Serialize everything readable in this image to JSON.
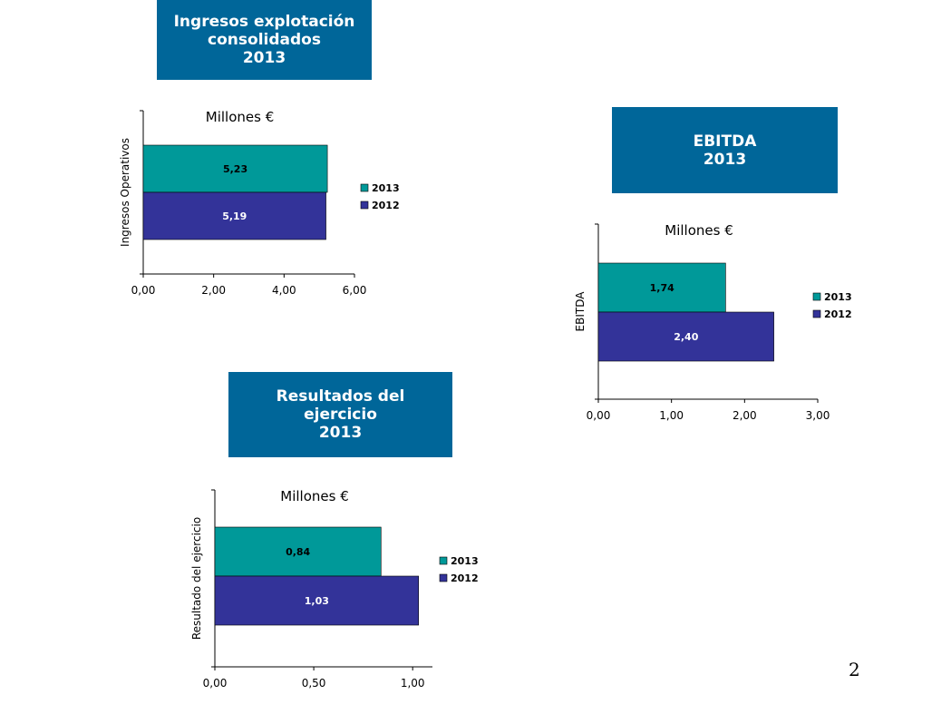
{
  "colors": {
    "accent": "#006699",
    "series_2013": "#009999",
    "series_2012": "#333399"
  },
  "title_boxes": [
    {
      "lines": [
        "Ingresos explotación",
        "consolidados",
        "2013"
      ]
    },
    {
      "lines": [
        "EBITDA",
        "2013"
      ]
    },
    {
      "lines": [
        "Resultados del",
        "ejercicio",
        "2013"
      ]
    }
  ],
  "chart_data": [
    {
      "type": "bar",
      "orientation": "horizontal",
      "title": "Millones €",
      "ylabel": "Ingresos Operativos",
      "xlim": [
        0,
        6
      ],
      "xticks": [
        "0,00",
        "2,00",
        "4,00",
        "6,00"
      ],
      "legend_placement": "right",
      "series": [
        {
          "name": "2013",
          "values": [
            5.23
          ],
          "label": "5,23"
        },
        {
          "name": "2012",
          "values": [
            5.19
          ],
          "label": "5,19"
        }
      ]
    },
    {
      "type": "bar",
      "orientation": "horizontal",
      "title": "Millones €",
      "ylabel": "EBITDA",
      "xlim": [
        0,
        3
      ],
      "xticks": [
        "0,00",
        "1,00",
        "2,00",
        "3,00"
      ],
      "legend_placement": "right",
      "series": [
        {
          "name": "2013",
          "values": [
            1.74
          ],
          "label": "1,74"
        },
        {
          "name": "2012",
          "values": [
            2.4
          ],
          "label": "2,40"
        }
      ]
    },
    {
      "type": "bar",
      "orientation": "horizontal",
      "title": "Millones €",
      "ylabel": "Resultado del ejercicio",
      "xlim": [
        0,
        1.1
      ],
      "xticks": [
        "0,00",
        "0,50",
        "1,00"
      ],
      "xtick_values": [
        0,
        0.5,
        1.0
      ],
      "legend_placement": "right",
      "series": [
        {
          "name": "2013",
          "values": [
            0.84
          ],
          "label": "0,84"
        },
        {
          "name": "2012",
          "values": [
            1.03
          ],
          "label": "1,03"
        }
      ]
    }
  ],
  "page_number": "2"
}
